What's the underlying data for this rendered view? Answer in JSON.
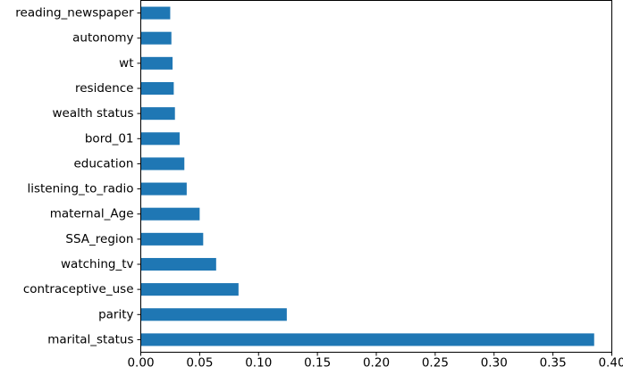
{
  "chart_data": {
    "type": "bar",
    "orientation": "horizontal",
    "title": "",
    "xlabel": "",
    "ylabel": "",
    "categories": [
      "marital_status",
      "parity",
      "contraceptive_use",
      "watching_tv",
      "SSA_region",
      "maternal_Age",
      "listening_to_radio",
      "education",
      "bord_01",
      "wealth status",
      "residence",
      "wt",
      "autonomy",
      "reading_newspaper"
    ],
    "values": [
      0.385,
      0.124,
      0.083,
      0.064,
      0.053,
      0.05,
      0.039,
      0.037,
      0.033,
      0.029,
      0.028,
      0.027,
      0.026,
      0.025
    ],
    "xlim": [
      0.0,
      0.4
    ],
    "xticks": [
      "0.00",
      "0.05",
      "0.10",
      "0.15",
      "0.20",
      "0.25",
      "0.30",
      "0.35",
      "0.40"
    ],
    "bar_color": "#1f77b4",
    "grid": false,
    "legend": "none"
  }
}
